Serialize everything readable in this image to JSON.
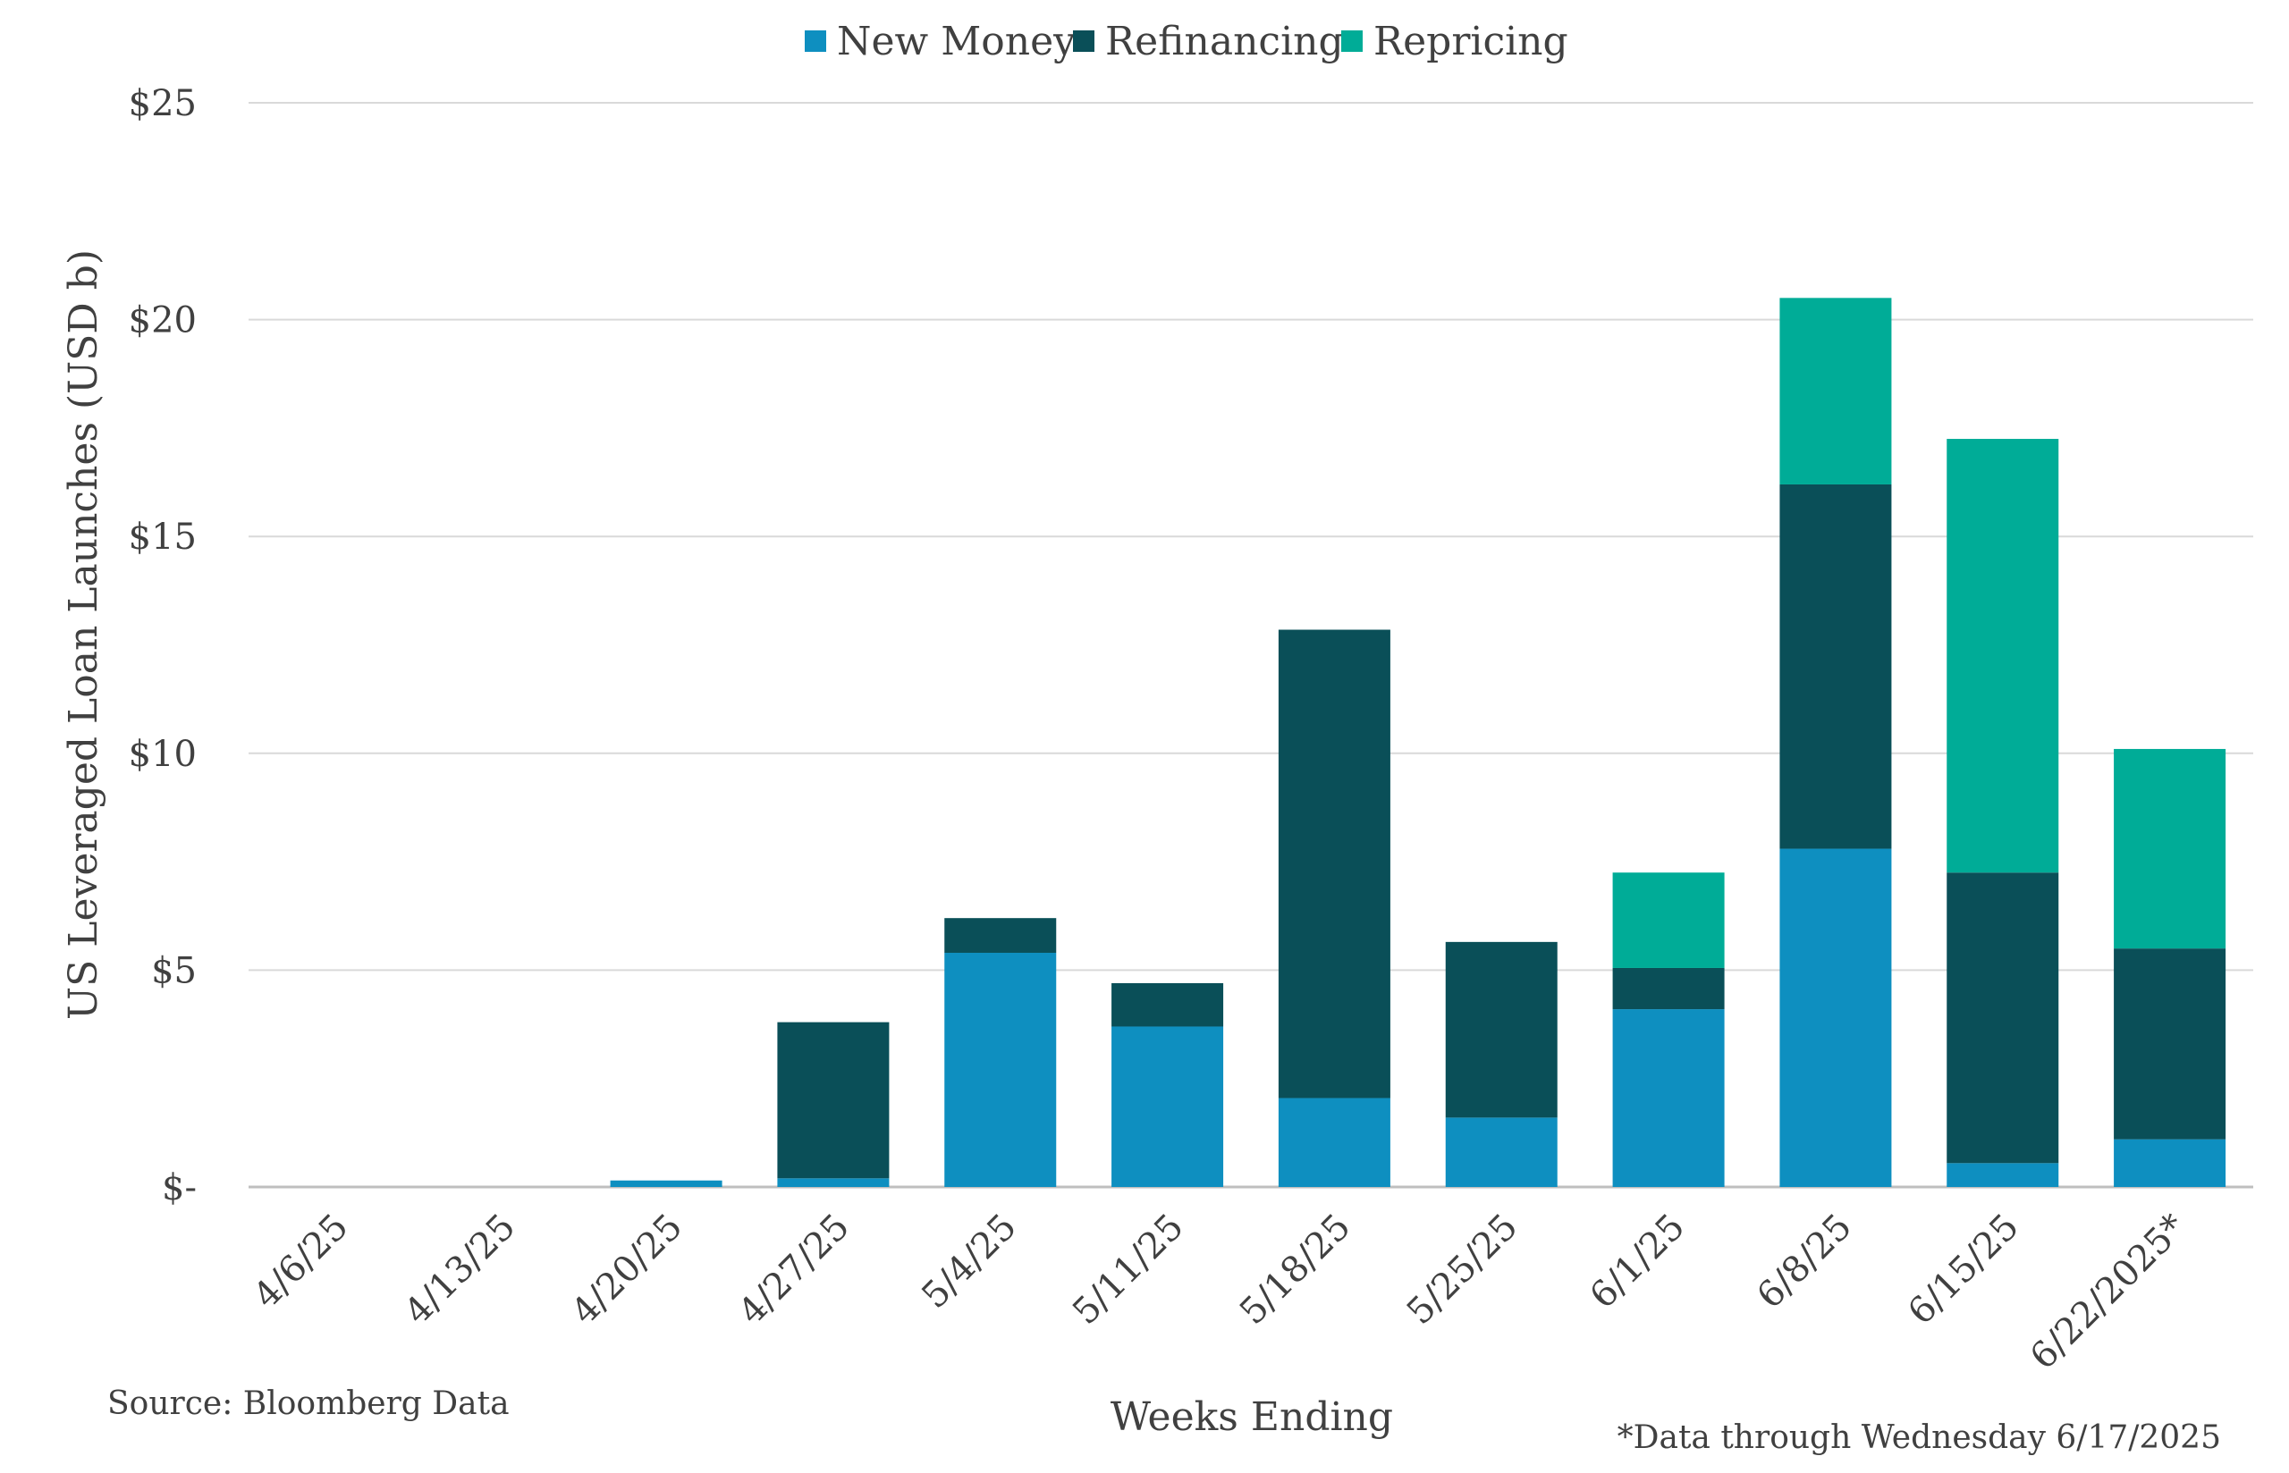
{
  "chart_data": {
    "type": "bar",
    "stacked": true,
    "categories": [
      "4/6/25",
      "4/13/25",
      "4/20/25",
      "4/27/25",
      "5/4/25",
      "5/11/25",
      "5/18/25",
      "5/25/25",
      "6/1/25",
      "6/8/25",
      "6/15/25",
      "6/22/2025*"
    ],
    "series": [
      {
        "name": "New Money",
        "color": "#0E8FC0",
        "values": [
          0,
          0,
          0.15,
          0.2,
          5.4,
          3.7,
          2.05,
          1.6,
          4.1,
          7.8,
          0.55,
          1.1
        ]
      },
      {
        "name": "Refinancing",
        "color": "#0A4F58",
        "values": [
          0,
          0,
          0,
          3.6,
          0.8,
          1.0,
          10.8,
          4.05,
          0.95,
          8.4,
          6.7,
          4.4
        ]
      },
      {
        "name": "Repricing",
        "color": "#00AC97",
        "values": [
          0,
          0,
          0,
          0,
          0,
          0,
          0,
          0,
          2.2,
          4.3,
          10.0,
          4.6
        ]
      }
    ],
    "xlabel": "Weeks Ending",
    "ylabel": "US Leveraged Loan Launches (USD b)",
    "ylim": [
      0,
      25
    ],
    "yticks": [
      0,
      5,
      10,
      15,
      20,
      25
    ],
    "ytick_labels": [
      "$-",
      "$5",
      "$10",
      "$15",
      "$20",
      "$25"
    ],
    "grid": true,
    "legend": "top-center",
    "source": "Source: Bloomberg Data",
    "footnote": "*Data through Wednesday 6/17/2025"
  }
}
